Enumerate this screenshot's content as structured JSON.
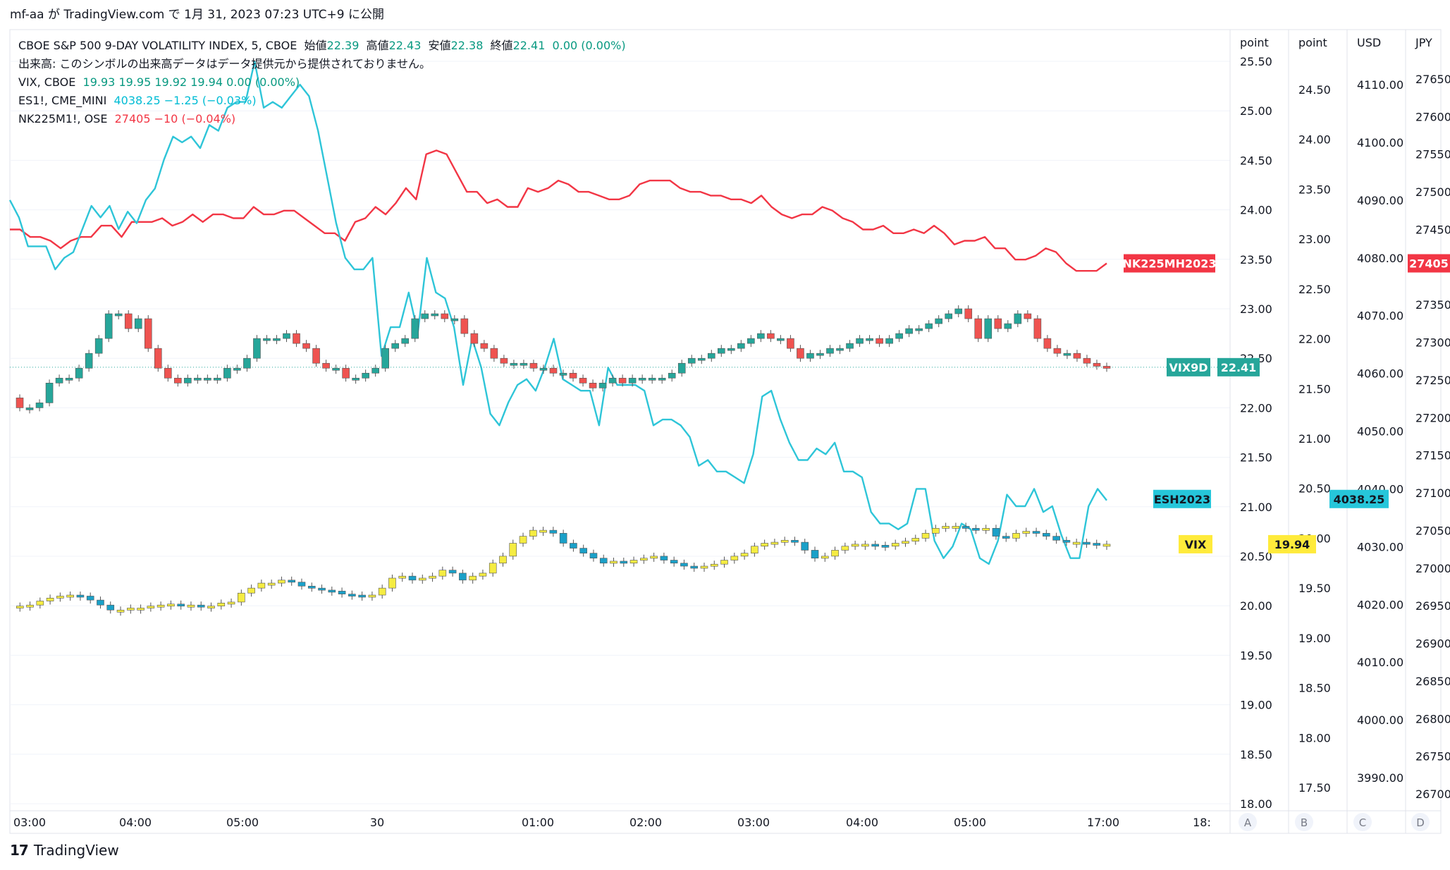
{
  "header": {
    "text": "mf-aa が TradingView.com で 1月 31, 2023 07:23 UTC+9 に公開"
  },
  "legend": {
    "main_name": "CBOE S&P 500 9-DAY VOLATILITY INDEX, 5, CBOE",
    "main_o_label": "始値",
    "main_o": "22.39",
    "main_h_label": "高値",
    "main_h": "22.43",
    "main_l_label": "安値",
    "main_l": "22.38",
    "main_c_label": "終値",
    "main_c": "22.41",
    "main_chg": "0.00 (0.00%)",
    "volume_note": "出来高: このシンボルの出来高データはデータ提供元から提供されておりません。",
    "vix_name": "VIX, CBOE",
    "vix_vals": "19.93  19.95  19.92  19.94  0.00 (0.00%)",
    "es_name": "ES1!, CME_MINI",
    "es_vals": "4038.25  −1.25 (−0.03%)",
    "nk_name": "NK225M1!, OSE",
    "nk_vals": "27405  −10 (−0.04%)"
  },
  "axes": {
    "a_header": "point",
    "b_header": "point",
    "c_header": "USD",
    "d_header": "JPY",
    "a_ticks": [
      "25.50",
      "25.00",
      "24.50",
      "24.00",
      "23.50",
      "23.00",
      "22.50",
      "22.00",
      "21.50",
      "21.00",
      "20.50",
      "20.00",
      "19.50",
      "19.00",
      "18.50",
      "18.00"
    ],
    "b_ticks": [
      "24.50",
      "24.00",
      "23.50",
      "23.00",
      "22.50",
      "22.00",
      "21.50",
      "21.00",
      "20.50",
      "20.00",
      "19.50",
      "19.00",
      "18.50",
      "18.00",
      "17.50"
    ],
    "c_ticks": [
      "4110.00",
      "4100.00",
      "4090.00",
      "4080.00",
      "4070.00",
      "4060.00",
      "4050.00",
      "4040.00",
      "4030.00",
      "4020.00",
      "4010.00",
      "4000.00",
      "3990.00"
    ],
    "d_ticks": [
      "27650",
      "27600",
      "27550",
      "27500",
      "27450",
      "27400",
      "27350",
      "27300",
      "27250",
      "27200",
      "27150",
      "27100",
      "27050",
      "27000",
      "26950",
      "26900",
      "26850",
      "26800",
      "26750",
      "26700"
    ],
    "x_ticks": [
      "03:00",
      "04:00",
      "05:00",
      "30",
      "01:00",
      "02:00",
      "03:00",
      "04:00",
      "05:00",
      "17:00",
      "18:"
    ],
    "scale_buttons": [
      "A",
      "B",
      "C",
      "D"
    ]
  },
  "price_tags": {
    "nk_label": "NK225MH2023",
    "nk_value": "27405",
    "vix9d_label": "VIX9D",
    "vix9d_value": "22.41",
    "es_label": "ESH2023",
    "es_value": "4038.25",
    "vix_label": "VIX",
    "vix_value": "19.94"
  },
  "colors": {
    "up": "#26a69a",
    "down": "#ef5350",
    "vix_up": "#f5ec42",
    "vix_down": "#1aa0c8",
    "es_line": "#2ec5d8",
    "nk_line": "#f23645",
    "vix9d_tag": "#26a69a",
    "vix_tag": "#ffeb3b"
  },
  "footer": {
    "brand": "TradingView"
  },
  "chart_data": {
    "type": "line",
    "series": [
      {
        "name": "NK225M1!",
        "values": [
          27450,
          27450,
          27440,
          27440,
          27435,
          27425,
          27435,
          27440,
          27440,
          27455,
          27455,
          27440,
          27460,
          27460,
          27460,
          27465,
          27455,
          27460,
          27470,
          27460,
          27470,
          27470,
          27465,
          27465,
          27480,
          27470,
          27470,
          27475,
          27475,
          27465,
          27455,
          27445,
          27445,
          27435,
          27460,
          27465,
          27480,
          27470,
          27485,
          27505,
          27490,
          27550,
          27555,
          27550,
          27525,
          27500,
          27500,
          27485,
          27490,
          27480,
          27480,
          27505,
          27500,
          27505,
          27515,
          27510,
          27500,
          27500,
          27495,
          27490,
          27490,
          27495,
          27510,
          27515,
          27515,
          27515,
          27505,
          27500,
          27500,
          27495,
          27495,
          27490,
          27490,
          27485,
          27495,
          27480,
          27470,
          27465,
          27470,
          27470,
          27480,
          27475,
          27465,
          27460,
          27450,
          27450,
          27455,
          27445,
          27445,
          27450,
          27445,
          27455,
          27445,
          27430,
          27435,
          27435,
          27440,
          27425,
          27425,
          27410,
          27410,
          27415,
          27425,
          27420,
          27405,
          27395,
          27395,
          27395,
          27405
        ]
      },
      {
        "name": "ES1!",
        "values": [
          4090,
          4087,
          4082,
          4082,
          4082,
          4078,
          4080,
          4081,
          4085,
          4089,
          4087,
          4089,
          4085,
          4088,
          4086,
          4090,
          4092,
          4097,
          4101,
          4100,
          4101,
          4099,
          4103,
          4102,
          4106,
          4107,
          4107,
          4114,
          4106,
          4107,
          4106,
          4108,
          4110,
          4108,
          4102,
          4094,
          4086,
          4080,
          4078,
          4078,
          4080,
          4063,
          4068,
          4068,
          4074,
          4067,
          4080,
          4074,
          4073,
          4068,
          4058,
          4066,
          4061,
          4053,
          4051,
          4055,
          4058,
          4059,
          4057,
          4061,
          4066,
          4059,
          4058,
          4057,
          4057,
          4051,
          4061,
          4058,
          4058,
          4058,
          4057,
          4051,
          4052,
          4052,
          4051,
          4049,
          4044,
          4045,
          4043,
          4043,
          4042,
          4041,
          4046,
          4056,
          4057,
          4052,
          4048,
          4045,
          4045,
          4047,
          4046,
          4048,
          4043,
          4043,
          4042,
          4036,
          4034,
          4034,
          4033,
          4034,
          4040,
          4040,
          4031,
          4028,
          4030,
          4034,
          4033,
          4028,
          4027,
          4031,
          4039,
          4037,
          4037,
          4040,
          4036,
          4037,
          4032,
          4028,
          4028,
          4037,
          4040,
          4038
        ]
      },
      {
        "name": "VIX9D",
        "values": [
          22.1,
          22.0,
          22.0,
          22.05,
          22.25,
          22.3,
          22.3,
          22.4,
          22.55,
          22.7,
          22.95,
          22.95,
          22.8,
          22.9,
          22.6,
          22.4,
          22.3,
          22.25,
          22.3,
          22.3,
          22.3,
          22.3,
          22.4,
          22.4,
          22.5,
          22.7,
          22.7,
          22.7,
          22.75,
          22.65,
          22.6,
          22.45,
          22.4,
          22.4,
          22.3,
          22.3,
          22.35,
          22.4,
          22.6,
          22.65,
          22.7,
          22.9,
          22.95,
          22.95,
          22.9,
          22.9,
          22.75,
          22.65,
          22.6,
          22.5,
          22.45,
          22.45,
          22.45,
          22.4,
          22.4,
          22.35,
          22.35,
          22.3,
          22.25,
          22.2,
          22.25,
          22.3,
          22.25,
          22.3,
          22.3,
          22.3,
          22.3,
          22.35,
          22.45,
          22.5,
          22.5,
          22.55,
          22.6,
          22.6,
          22.65,
          22.7,
          22.75,
          22.7,
          22.7,
          22.6,
          22.5,
          22.55,
          22.55,
          22.6,
          22.6,
          22.65,
          22.7,
          22.7,
          22.65,
          22.7,
          22.75,
          22.8,
          22.8,
          22.85,
          22.9,
          22.95,
          23.0,
          22.9,
          22.7,
          22.9,
          22.8,
          22.85,
          22.95,
          22.9,
          22.7,
          22.6,
          22.55,
          22.55,
          22.5,
          22.45,
          22.42,
          22.41
        ]
      },
      {
        "name": "VIX",
        "values": [
          19.3,
          19.32,
          19.33,
          19.37,
          19.4,
          19.42,
          19.43,
          19.42,
          19.38,
          19.33,
          19.28,
          19.28,
          19.3,
          19.3,
          19.32,
          19.33,
          19.34,
          19.33,
          19.33,
          19.32,
          19.32,
          19.35,
          19.36,
          19.45,
          19.5,
          19.55,
          19.55,
          19.58,
          19.56,
          19.52,
          19.5,
          19.48,
          19.47,
          19.44,
          19.43,
          19.42,
          19.43,
          19.5,
          19.6,
          19.62,
          19.58,
          19.6,
          19.62,
          19.68,
          19.65,
          19.58,
          19.62,
          19.65,
          19.75,
          19.82,
          19.95,
          20.02,
          20.08,
          20.08,
          20.05,
          19.95,
          19.9,
          19.85,
          19.8,
          19.75,
          19.77,
          19.75,
          19.78,
          19.8,
          19.82,
          19.78,
          19.75,
          19.72,
          19.7,
          19.72,
          19.74,
          19.78,
          19.82,
          19.85,
          19.92,
          19.95,
          19.96,
          19.98,
          19.96,
          19.88,
          19.8,
          19.82,
          19.88,
          19.92,
          19.94,
          19.94,
          19.93,
          19.92,
          19.95,
          19.97,
          20.0,
          20.05,
          20.1,
          20.12,
          20.12,
          20.1,
          20.08,
          20.1,
          20.02,
          20.0,
          20.05,
          20.07,
          20.05,
          20.02,
          19.98,
          19.96,
          19.96,
          19.95,
          19.94,
          19.94
        ]
      }
    ],
    "x_tick_labels": [
      "03:00",
      "04:00",
      "05:00",
      "30",
      "01:00",
      "02:00",
      "03:00",
      "04:00",
      "05:00",
      "17:00",
      "18:"
    ],
    "ylabel": ""
  }
}
